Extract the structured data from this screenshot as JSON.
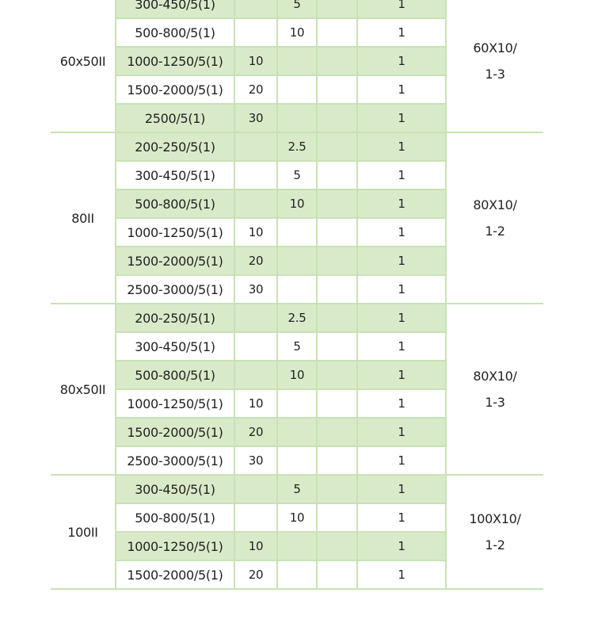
{
  "groups": [
    {
      "model": "60x50II",
      "bar": [
        "60X10/",
        "1-3"
      ],
      "rows": [
        {
          "ratio": "300-450/5(1)",
          "c0_5": "",
          "c1": "5",
          "c2": "",
          "turns": "1"
        },
        {
          "ratio": "500-800/5(1)",
          "c0_5": "",
          "c1": "10",
          "c2": "",
          "turns": "1"
        },
        {
          "ratio": "1000-1250/5(1)",
          "c0_5": "10",
          "c1": "",
          "c2": "",
          "turns": "1"
        },
        {
          "ratio": "1500-2000/5(1)",
          "c0_5": "20",
          "c1": "",
          "c2": "",
          "turns": "1"
        },
        {
          "ratio": "2500/5(1)",
          "c0_5": "30",
          "c1": "",
          "c2": "",
          "turns": "1"
        }
      ]
    },
    {
      "model": "80II",
      "bar": [
        "80X10/",
        "1-2"
      ],
      "rows": [
        {
          "ratio": "200-250/5(1)",
          "c0_5": "",
          "c1": "2.5",
          "c2": "",
          "turns": "1"
        },
        {
          "ratio": "300-450/5(1)",
          "c0_5": "",
          "c1": "5",
          "c2": "",
          "turns": "1"
        },
        {
          "ratio": "500-800/5(1)",
          "c0_5": "",
          "c1": "10",
          "c2": "",
          "turns": "1"
        },
        {
          "ratio": "1000-1250/5(1)",
          "c0_5": "10",
          "c1": "",
          "c2": "",
          "turns": "1"
        },
        {
          "ratio": "1500-2000/5(1)",
          "c0_5": "20",
          "c1": "",
          "c2": "",
          "turns": "1"
        },
        {
          "ratio": "2500-3000/5(1)",
          "c0_5": "30",
          "c1": "",
          "c2": "",
          "turns": "1"
        }
      ]
    },
    {
      "model": "80x50II",
      "bar": [
        "80X10/",
        "1-3"
      ],
      "rows": [
        {
          "ratio": "200-250/5(1)",
          "c0_5": "",
          "c1": "2.5",
          "c2": "",
          "turns": "1"
        },
        {
          "ratio": "300-450/5(1)",
          "c0_5": "",
          "c1": "5",
          "c2": "",
          "turns": "1"
        },
        {
          "ratio": "500-800/5(1)",
          "c0_5": "",
          "c1": "10",
          "c2": "",
          "turns": "1"
        },
        {
          "ratio": "1000-1250/5(1)",
          "c0_5": "10",
          "c1": "",
          "c2": "",
          "turns": "1"
        },
        {
          "ratio": "1500-2000/5(1)",
          "c0_5": "20",
          "c1": "",
          "c2": "",
          "turns": "1"
        },
        {
          "ratio": "2500-3000/5(1)",
          "c0_5": "30",
          "c1": "",
          "c2": "",
          "turns": "1"
        }
      ]
    },
    {
      "model": "100II",
      "bar": [
        "100X10/",
        "1-2"
      ],
      "rows": [
        {
          "ratio": "300-450/5(1)",
          "c0_5": "",
          "c1": "5",
          "c2": "",
          "turns": "1"
        },
        {
          "ratio": "500-800/5(1)",
          "c0_5": "",
          "c1": "10",
          "c2": "",
          "turns": "1"
        },
        {
          "ratio": "1000-1250/5(1)",
          "c0_5": "10",
          "c1": "",
          "c2": "",
          "turns": "1"
        },
        {
          "ratio": "1500-2000/5(1)",
          "c0_5": "20",
          "c1": "",
          "c2": "",
          "turns": "1"
        }
      ]
    }
  ],
  "colors": {
    "border": "#c8e2b5",
    "row_shade": "#d9eac9",
    "text": "#222222"
  }
}
